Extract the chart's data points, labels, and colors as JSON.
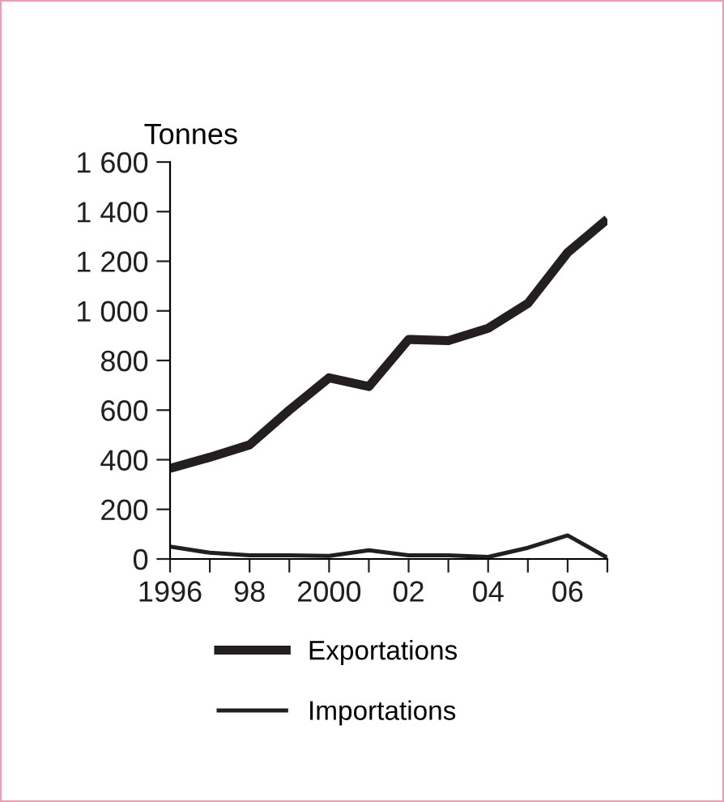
{
  "chart_data": {
    "type": "line",
    "ylabel": "Tonnes",
    "x": [
      1996,
      1997,
      1998,
      1999,
      2000,
      2001,
      2002,
      2003,
      2004,
      2005,
      2006,
      2007
    ],
    "series": [
      {
        "name": "Exportations",
        "color": "#231f20",
        "values": [
          365,
          410,
          460,
          600,
          730,
          695,
          885,
          880,
          930,
          1030,
          1235,
          1370
        ]
      },
      {
        "name": "Importations",
        "color": "#231f20",
        "values": [
          50,
          25,
          15,
          15,
          12,
          35,
          15,
          15,
          8,
          45,
          95,
          5
        ]
      }
    ],
    "xlim": [
      1996,
      2007
    ],
    "xticks": [
      {
        "value": 1996,
        "label": "1996"
      },
      {
        "value": 1997,
        "label": null
      },
      {
        "value": 1998,
        "label": "98"
      },
      {
        "value": 1999,
        "label": null
      },
      {
        "value": 2000,
        "label": "2000"
      },
      {
        "value": 2001,
        "label": null
      },
      {
        "value": 2002,
        "label": "02"
      },
      {
        "value": 2003,
        "label": null
      },
      {
        "value": 2004,
        "label": "04"
      },
      {
        "value": 2005,
        "label": null
      },
      {
        "value": 2006,
        "label": "06"
      },
      {
        "value": 2007,
        "label": null
      }
    ],
    "ylim": [
      0,
      1600
    ],
    "yticks": [
      {
        "value": 0,
        "label": "0"
      },
      {
        "value": 200,
        "label": "200"
      },
      {
        "value": 400,
        "label": "400"
      },
      {
        "value": 600,
        "label": "600"
      },
      {
        "value": 800,
        "label": "800"
      },
      {
        "value": 1000,
        "label": "1 000"
      },
      {
        "value": 1200,
        "label": "1 200"
      },
      {
        "value": 1400,
        "label": "1 400"
      },
      {
        "value": 1600,
        "label": "1 600"
      }
    ],
    "grid": false,
    "legend": "bottom",
    "marker": "none",
    "line_style": "solid"
  }
}
